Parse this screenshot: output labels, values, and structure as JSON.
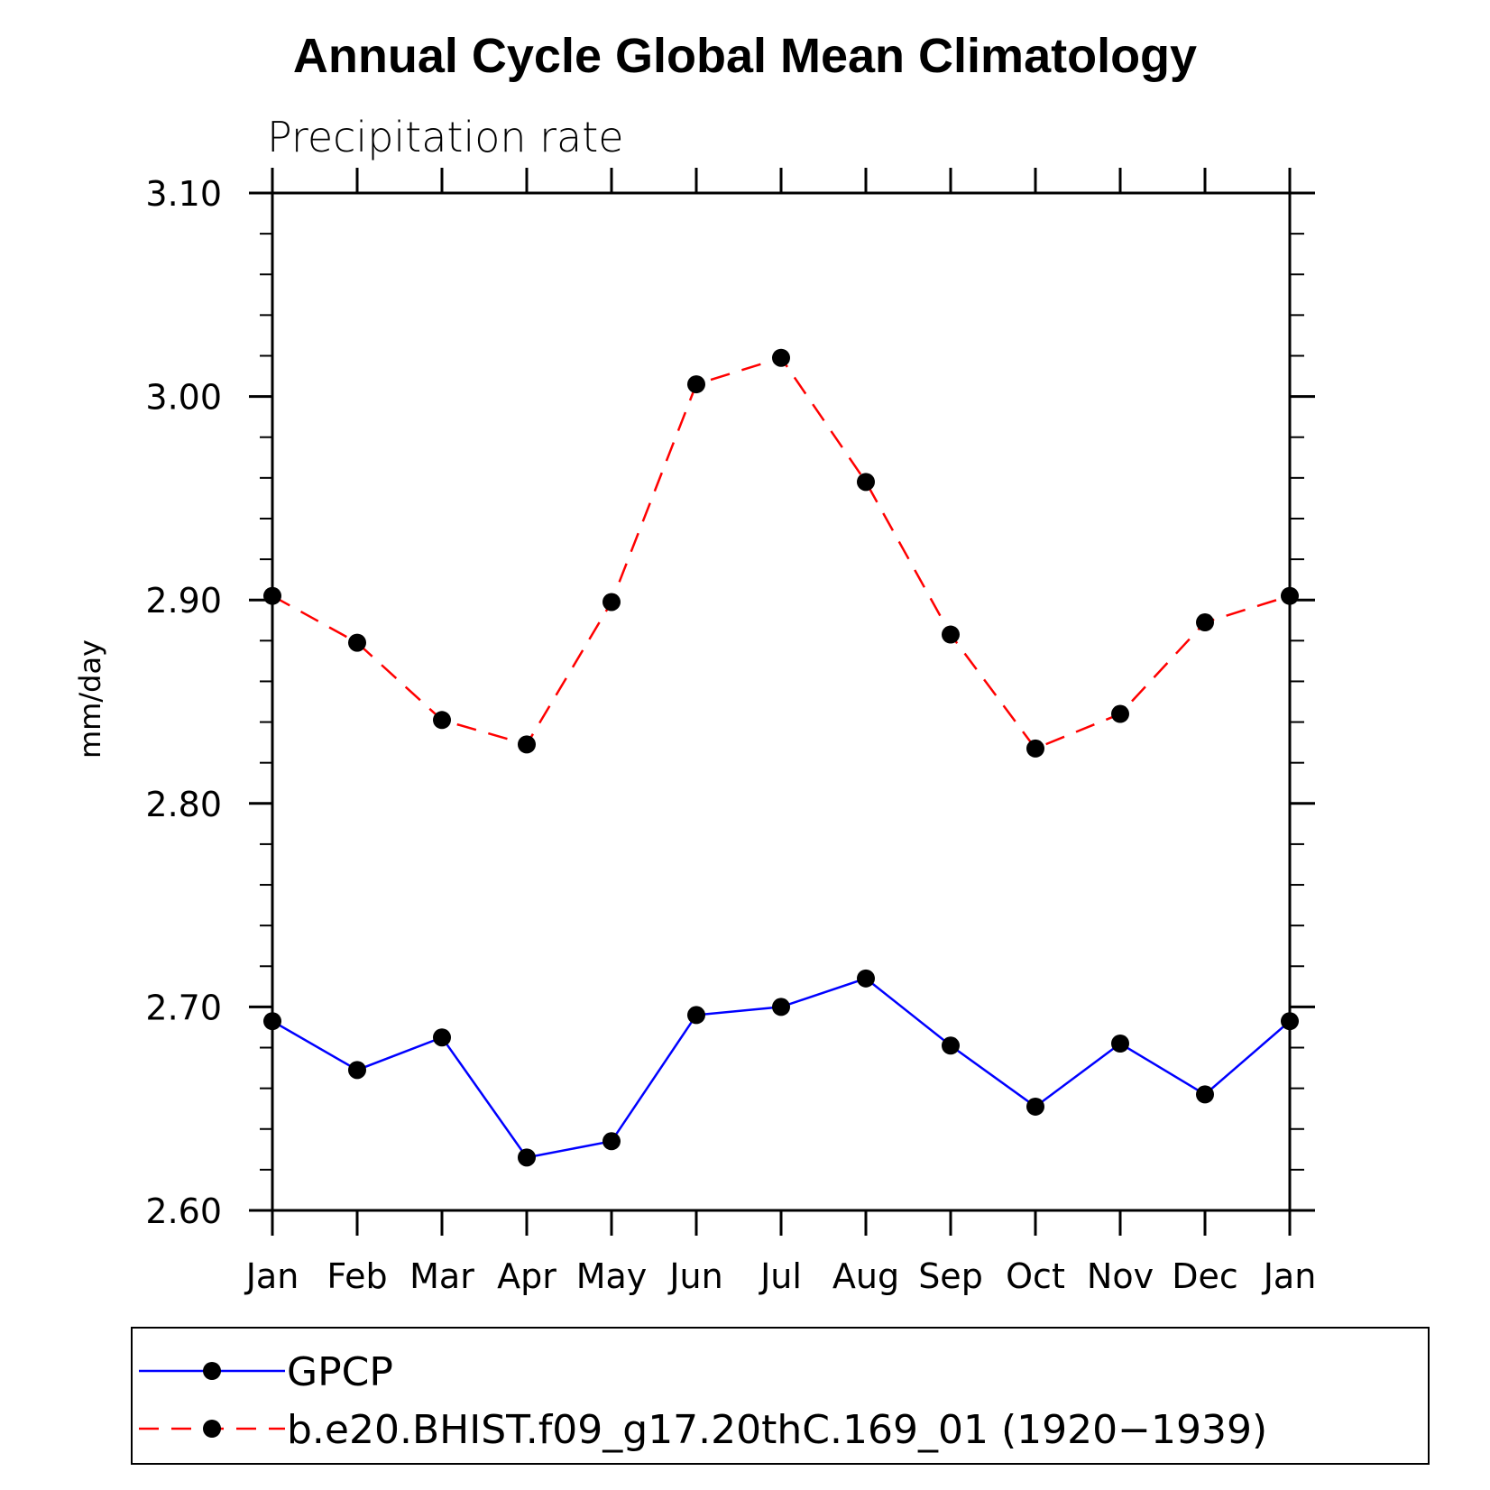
{
  "chart_data": {
    "type": "line",
    "title": "Annual Cycle Global Mean Climatology",
    "subtitle": "Precipitation rate",
    "xlabel": "",
    "ylabel": "mm/day",
    "categories": [
      "Jan",
      "Feb",
      "Mar",
      "Apr",
      "May",
      "Jun",
      "Jul",
      "Aug",
      "Sep",
      "Oct",
      "Nov",
      "Dec",
      "Jan"
    ],
    "ylim": [
      2.6,
      3.1
    ],
    "yticks": [
      "2.60",
      "2.70",
      "2.80",
      "2.90",
      "3.00",
      "3.10"
    ],
    "legend_position": "bottom",
    "series": [
      {
        "name": "GPCP",
        "color": "#0000ff",
        "style": "solid",
        "values": [
          2.693,
          2.669,
          2.685,
          2.626,
          2.634,
          2.696,
          2.7,
          2.714,
          2.681,
          2.651,
          2.682,
          2.657,
          2.693
        ]
      },
      {
        "name": "b.e20.BHIST.f09_g17.20thC.169_01 (1920−1939)",
        "color": "#ff0000",
        "style": "dashed",
        "values": [
          2.902,
          2.879,
          2.841,
          2.829,
          2.899,
          3.006,
          3.019,
          2.958,
          2.883,
          2.827,
          2.844,
          2.889,
          2.902
        ]
      }
    ]
  }
}
